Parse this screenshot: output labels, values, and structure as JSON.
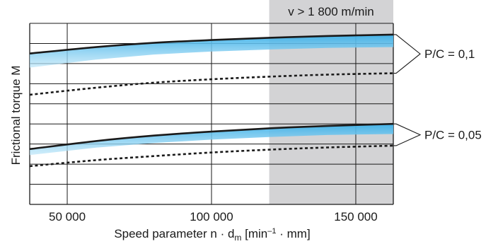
{
  "chart_data": {
    "type": "line",
    "title": "",
    "xlabel_main": "Speed parameter  n · d",
    "xlabel_sub": "m",
    "xlabel_units_start": " [min",
    "xlabel_units_sup": "–1",
    "xlabel_units_end": " · mm]",
    "ylabel": "Frictional torque M",
    "xlim": [
      37000,
      163000
    ],
    "ylim": [
      0,
      9
    ],
    "x_ticks": [
      {
        "value": 50000,
        "label": "50 000"
      },
      {
        "value": 100000,
        "label": "100 000"
      },
      {
        "value": 150000,
        "label": "150 000"
      }
    ],
    "grid": true,
    "shaded_region": {
      "x_from": 120000,
      "x_to": 163000,
      "label": "v > 1 800 m/min"
    },
    "groups": [
      {
        "label": "P/C = 0,1",
        "upper": {
          "x": [
            37000,
            60000,
            80000,
            100000,
            120000,
            140000,
            163000
          ],
          "y": [
            7.5,
            7.82,
            8.03,
            8.17,
            8.28,
            8.37,
            8.44
          ]
        },
        "band_lower": {
          "x": [
            37000,
            60000,
            80000,
            100000,
            120000,
            140000,
            163000
          ],
          "y": [
            6.8,
            7.2,
            7.45,
            7.6,
            7.7,
            7.78,
            7.82
          ]
        },
        "lower": {
          "x": [
            37000,
            60000,
            80000,
            100000,
            120000,
            140000,
            163000
          ],
          "y": [
            5.45,
            5.8,
            6.05,
            6.22,
            6.35,
            6.45,
            6.52
          ]
        }
      },
      {
        "label": "P/C = 0,05",
        "upper": {
          "x": [
            37000,
            60000,
            80000,
            100000,
            120000,
            140000,
            163000
          ],
          "y": [
            2.75,
            3.15,
            3.42,
            3.62,
            3.78,
            3.9,
            4.0
          ]
        },
        "band_lower": {
          "x": [
            37000,
            60000,
            80000,
            100000,
            120000,
            140000,
            163000
          ],
          "y": [
            2.45,
            2.82,
            3.05,
            3.22,
            3.35,
            3.45,
            3.5
          ]
        },
        "lower": {
          "x": [
            37000,
            60000,
            80000,
            100000,
            120000,
            140000,
            163000
          ],
          "y": [
            1.9,
            2.2,
            2.4,
            2.58,
            2.72,
            2.83,
            2.92
          ]
        }
      }
    ]
  },
  "colors": {
    "shade": "#d3d3d5",
    "band": "#62c4ee",
    "curve": "#1a1a1a",
    "grid": "#1a1a1a"
  }
}
